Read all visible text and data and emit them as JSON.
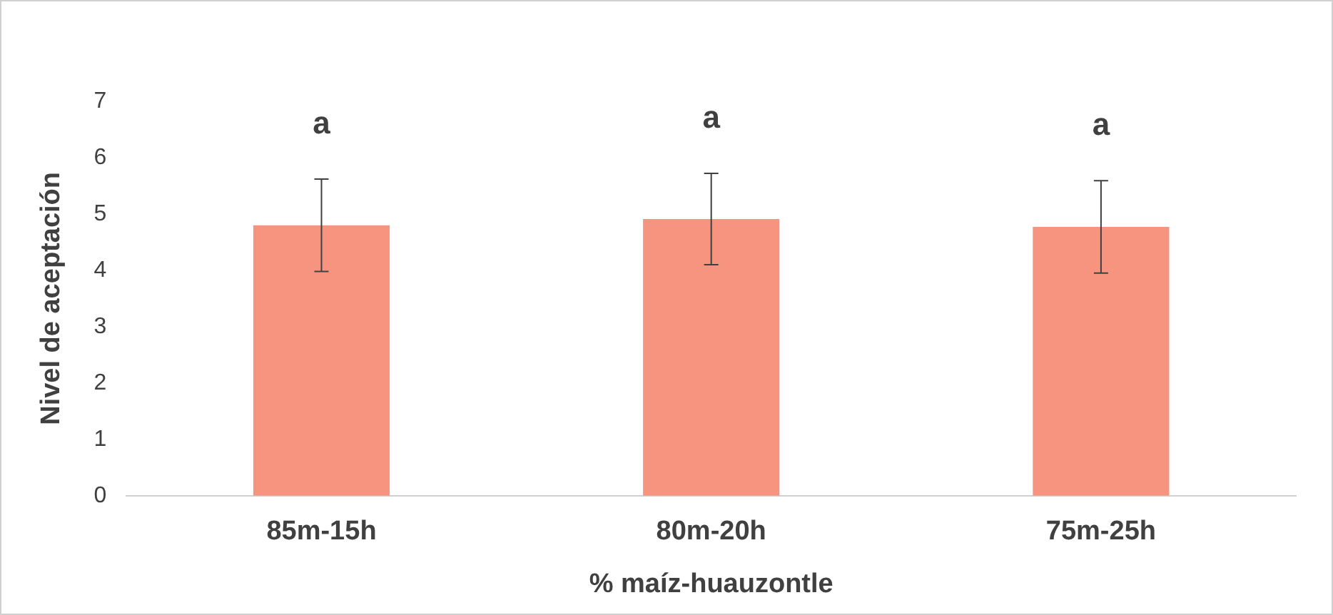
{
  "chart_data": {
    "type": "bar",
    "xlabel": "% maíz-huauzontle",
    "ylabel": "Nivel de aceptación",
    "categories": [
      "85m-15h",
      "80m-20h",
      "75m-25h"
    ],
    "values": [
      4.8,
      4.91,
      4.77
    ],
    "color": "#f79480",
    "errors": [
      0.82,
      0.81,
      0.82
    ],
    "ylim": [
      0,
      7
    ],
    "yticks": [
      0,
      1,
      2,
      3,
      4,
      5,
      6,
      7
    ],
    "grid": false,
    "legend": false,
    "annotations": [
      "a",
      "a",
      "a"
    ]
  }
}
